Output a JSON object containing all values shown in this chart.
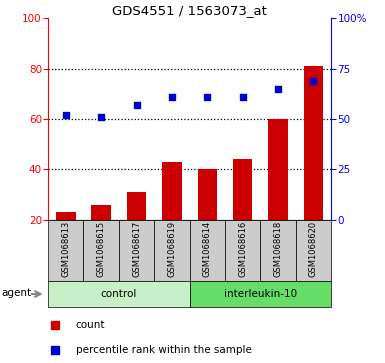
{
  "title": "GDS4551 / 1563073_at",
  "samples": [
    "GSM1068613",
    "GSM1068615",
    "GSM1068617",
    "GSM1068619",
    "GSM1068614",
    "GSM1068616",
    "GSM1068618",
    "GSM1068620"
  ],
  "bar_values": [
    23,
    26,
    31,
    43,
    40,
    44,
    60,
    81
  ],
  "percentile_values": [
    52,
    51,
    57,
    61,
    61,
    61,
    65,
    69
  ],
  "bar_color": "#cc0000",
  "dot_color": "#0000cc",
  "ylim_left": [
    20,
    100
  ],
  "ylim_right": [
    0,
    100
  ],
  "yticks_left": [
    20,
    40,
    60,
    80,
    100
  ],
  "yticks_right": [
    0,
    25,
    50,
    75,
    100
  ],
  "ytick_labels_right": [
    "0",
    "25",
    "50",
    "75",
    "100%"
  ],
  "control_label": "control",
  "interleukin_label": "interleukin-10",
  "agent_label": "agent",
  "legend_count": "count",
  "legend_percentile": "percentile rank within the sample",
  "group_bg_color_ctrl": "#c8f0c8",
  "group_bg_color_il": "#66dd66",
  "sample_bg_color": "#cccccc",
  "bar_width": 0.55,
  "dotted_lines": [
    40,
    60,
    80
  ]
}
